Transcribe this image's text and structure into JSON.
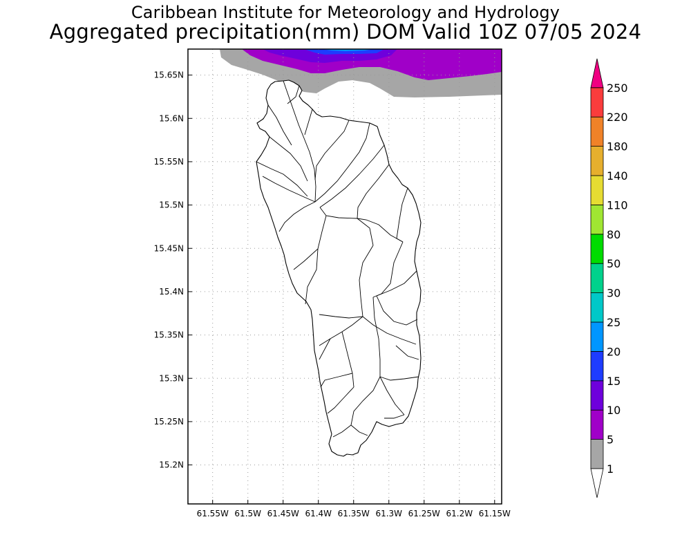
{
  "title": {
    "line1": "Caribbean Institute for Meteorology and Hydrology",
    "line2": "Aggregated precipitation(mm) DOM Valid 10Z 07/05 2024"
  },
  "map": {
    "lon_range": [
      -61.585,
      -61.14
    ],
    "lat_range": [
      15.155,
      15.68
    ],
    "lon_ticks": [
      {
        "value": -61.55,
        "label": "61.55W"
      },
      {
        "value": -61.5,
        "label": "61.5W"
      },
      {
        "value": -61.45,
        "label": "61.45W"
      },
      {
        "value": -61.4,
        "label": "61.4W"
      },
      {
        "value": -61.35,
        "label": "61.35W"
      },
      {
        "value": -61.3,
        "label": "61.3W"
      },
      {
        "value": -61.25,
        "label": "61.25W"
      },
      {
        "value": -61.2,
        "label": "61.2W"
      },
      {
        "value": -61.15,
        "label": "61.15W"
      }
    ],
    "lat_ticks": [
      {
        "value": 15.65,
        "label": "15.65N"
      },
      {
        "value": 15.6,
        "label": "15.6N"
      },
      {
        "value": 15.55,
        "label": "15.55N"
      },
      {
        "value": 15.5,
        "label": "15.5N"
      },
      {
        "value": 15.45,
        "label": "15.45N"
      },
      {
        "value": 15.4,
        "label": "15.4N"
      },
      {
        "value": 15.35,
        "label": "15.35N"
      },
      {
        "value": 15.3,
        "label": "15.3N"
      },
      {
        "value": 15.25,
        "label": "15.25N"
      },
      {
        "value": 15.2,
        "label": "15.2N"
      }
    ],
    "gridlines": "dotted",
    "island": "Dominica",
    "precip_band": "along northern edge, 1-15 mm"
  },
  "legend": {
    "values": [
      "1",
      "5",
      "10",
      "15",
      "20",
      "25",
      "30",
      "50",
      "80",
      "110",
      "140",
      "180",
      "220",
      "250"
    ],
    "colors": [
      "#a6a6a6",
      "#a000c8",
      "#6e00dc",
      "#1e3cff",
      "#0096ff",
      "#00c8c8",
      "#00d28c",
      "#00dc00",
      "#a0e632",
      "#e6dc32",
      "#e6af2d",
      "#f08228",
      "#fa3c3c",
      "#f00082"
    ]
  }
}
